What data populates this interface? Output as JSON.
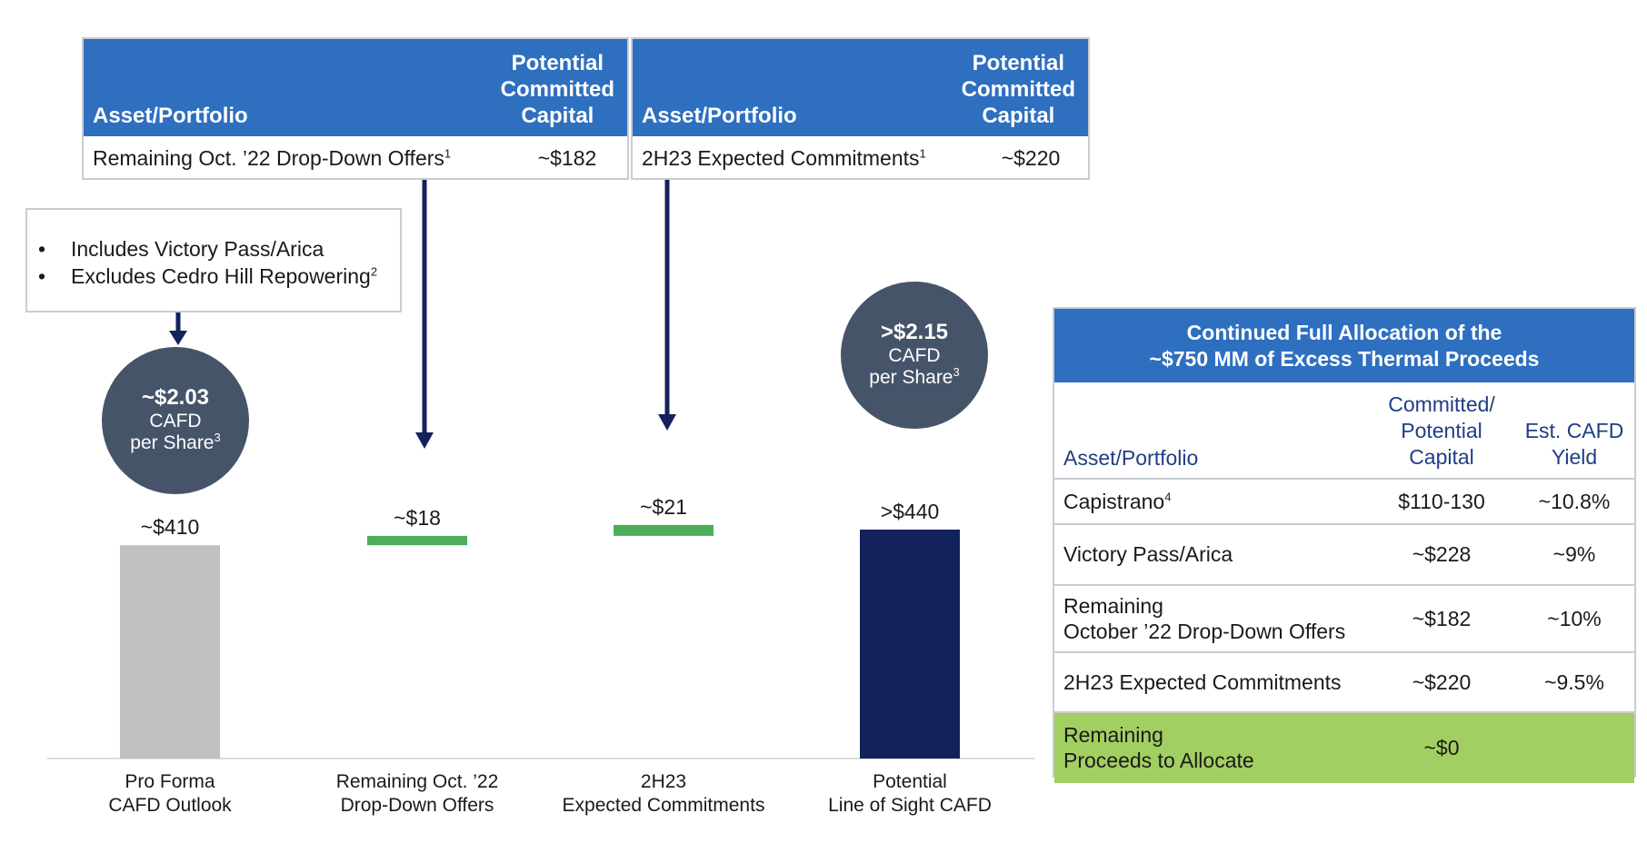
{
  "top_tables": [
    {
      "header_asset": "Asset/Portfolio",
      "header_capital": [
        "Potential",
        "Committed",
        "Capital"
      ],
      "row_asset": "Remaining Oct. ’22 Drop-Down Offers",
      "row_sup": "1",
      "row_value": "~$182"
    },
    {
      "header_asset": "Asset/Portfolio",
      "header_capital": [
        "Potential",
        "Committed",
        "Capital"
      ],
      "row_asset": "2H23 Expected Commitments",
      "row_sup": "1",
      "row_value": "~$220"
    }
  ],
  "callout": {
    "bullet": "•",
    "items": [
      {
        "text": "Includes Victory Pass/Arica",
        "sup": ""
      },
      {
        "text": "Excludes Cedro Hill Repowering",
        "sup": "2"
      }
    ]
  },
  "bubbles": [
    {
      "value": "~$2.03",
      "line2": "CAFD",
      "line3": "per Share",
      "sup": "3"
    },
    {
      "value": ">$2.15",
      "line2": "CAFD",
      "line3": "per Share",
      "sup": "3"
    }
  ],
  "chart_data": {
    "type": "bar",
    "subtype": "waterfall",
    "categories": [
      "Pro Forma CAFD Outlook",
      "Remaining Oct. ’22 Drop-Down Offers",
      "2H23 Expected Commitments",
      "Potential Line of  Sight CAFD"
    ],
    "category_lines": [
      [
        "Pro Forma",
        "CAFD Outlook"
      ],
      [
        "Remaining Oct. ’22",
        "Drop-Down Offers"
      ],
      [
        "2H23",
        "Expected Commitments"
      ],
      [
        "Potential",
        "Line of  Sight CAFD"
      ]
    ],
    "values": [
      410,
      18,
      21,
      440
    ],
    "bases": [
      0,
      410,
      428,
      0
    ],
    "data_labels": [
      "~$410",
      "~$18",
      "~$21",
      ">$440"
    ],
    "colors": [
      "#c0c0c0",
      "#4eae5b",
      "#4eae5b",
      "#13225b"
    ],
    "title": "",
    "xlabel": "",
    "ylabel": "",
    "ylim": [
      0,
      440
    ],
    "grid": false
  },
  "right_table": {
    "title_lines": [
      "Continued Full Allocation of the",
      "~$750 MM of Excess Thermal Proceeds"
    ],
    "col_asset": "Asset/Portfolio",
    "col_capital": [
      "Committed/",
      "Potential",
      "Capital"
    ],
    "col_yield": [
      "Est. CAFD",
      "Yield"
    ],
    "rows": [
      {
        "asset": [
          "Capistrano"
        ],
        "sup": "4",
        "capital": "$110-130",
        "yield": "~10.8%"
      },
      {
        "asset": [
          "Victory Pass/Arica"
        ],
        "sup": "",
        "capital": "~$228",
        "yield": "~9%"
      },
      {
        "asset": [
          "Remaining",
          "October ’22 Drop-Down Offers"
        ],
        "sup": "",
        "capital": "~$182",
        "yield": "~10%"
      },
      {
        "asset": [
          "2H23 Expected Commitments"
        ],
        "sup": "",
        "capital": "~$220",
        "yield": "~9.5%"
      },
      {
        "asset": [
          "Remaining",
          "Proceeds to Allocate"
        ],
        "sup": "",
        "capital": "~$0",
        "yield": ""
      }
    ]
  },
  "colors": {
    "header_blue": "#2e6fbf",
    "navy": "#13225b",
    "bubble": "#46546a",
    "green_bar": "#4eae5b",
    "green_row": "#a2cf62",
    "gray_bar": "#c0c0c0"
  }
}
